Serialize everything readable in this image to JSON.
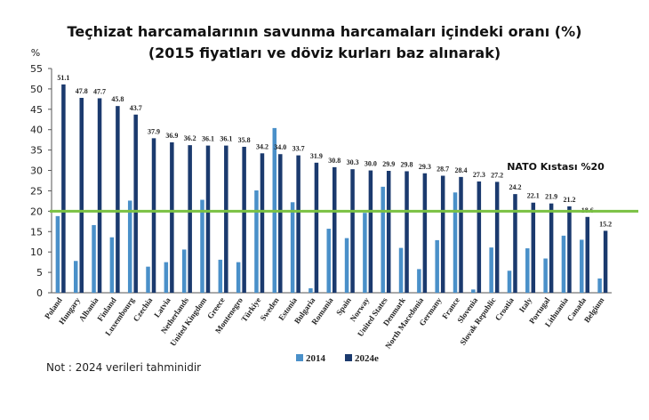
{
  "chart_data": {
    "type": "bar",
    "title": "Teçhizat harcamalarının savunma harcamaları içindeki oranı (%)",
    "subtitle": "(2015 fiyatları ve döviz kurları baz alınarak)",
    "ylabel": "%",
    "ylim": [
      0,
      55
    ],
    "yticks": [
      0,
      5,
      10,
      15,
      20,
      25,
      30,
      35,
      40,
      45,
      50,
      55
    ],
    "categories": [
      "Poland",
      "Hungary",
      "Albania",
      "Finland",
      "Luxembourg",
      "Czechia",
      "Latvia",
      "Netherlands",
      "United Kingdom",
      "Greece",
      "Montenegro",
      "Türkiye",
      "Sweden",
      "Estonia",
      "Bulgaria",
      "Romania",
      "Spain",
      "Norway",
      "United States",
      "Denmark",
      "North Macedonia",
      "Germany",
      "France",
      "Slovenia",
      "Slovak Republic",
      "Croatia",
      "Italy",
      "Portugal",
      "Lithuania",
      "Canada",
      "Belgium"
    ],
    "series": [
      {
        "name": "2014",
        "color": "#4a90c9",
        "values": [
          18.8,
          7.8,
          16.6,
          13.6,
          22.6,
          6.4,
          7.5,
          10.6,
          22.8,
          8.1,
          7.5,
          25.1,
          40.4,
          22.2,
          1.1,
          15.7,
          13.4,
          19.6,
          26.0,
          11.0,
          5.8,
          12.9,
          24.6,
          0.8,
          11.1,
          5.4,
          10.9,
          8.4,
          14.0,
          13.0,
          3.5
        ]
      },
      {
        "name": "2024e",
        "color": "#1b3a6e",
        "values": [
          51.1,
          47.8,
          47.7,
          45.8,
          43.7,
          37.9,
          36.9,
          36.2,
          36.1,
          36.1,
          35.8,
          34.2,
          34.0,
          33.7,
          31.9,
          30.8,
          30.3,
          30.0,
          29.9,
          29.8,
          29.3,
          28.7,
          28.4,
          27.3,
          27.2,
          24.2,
          22.1,
          21.9,
          21.2,
          18.6,
          15.2
        ]
      }
    ],
    "data_labels": [
      "51.1",
      "47.8",
      "47.7",
      "45.8",
      "43.7",
      "37.9",
      "36.9",
      "36.2",
      "36.1",
      "36.1",
      "35.8",
      "34.2",
      "34.0",
      "33.7",
      "31.9",
      "30.8",
      "30.3",
      "30.0",
      "29.9",
      "29.8",
      "29.3",
      "28.7",
      "28.4",
      "27.3",
      "27.2",
      "24.2",
      "22.1",
      "21.9",
      "21.2",
      "18.6",
      "15.2"
    ],
    "reference_line": {
      "value": 20,
      "label": "NATO Kıstası %20",
      "color": "#7ac143"
    },
    "legend_position": "bottom",
    "grid": false
  },
  "note": "Not : 2024 verileri tahminidir"
}
